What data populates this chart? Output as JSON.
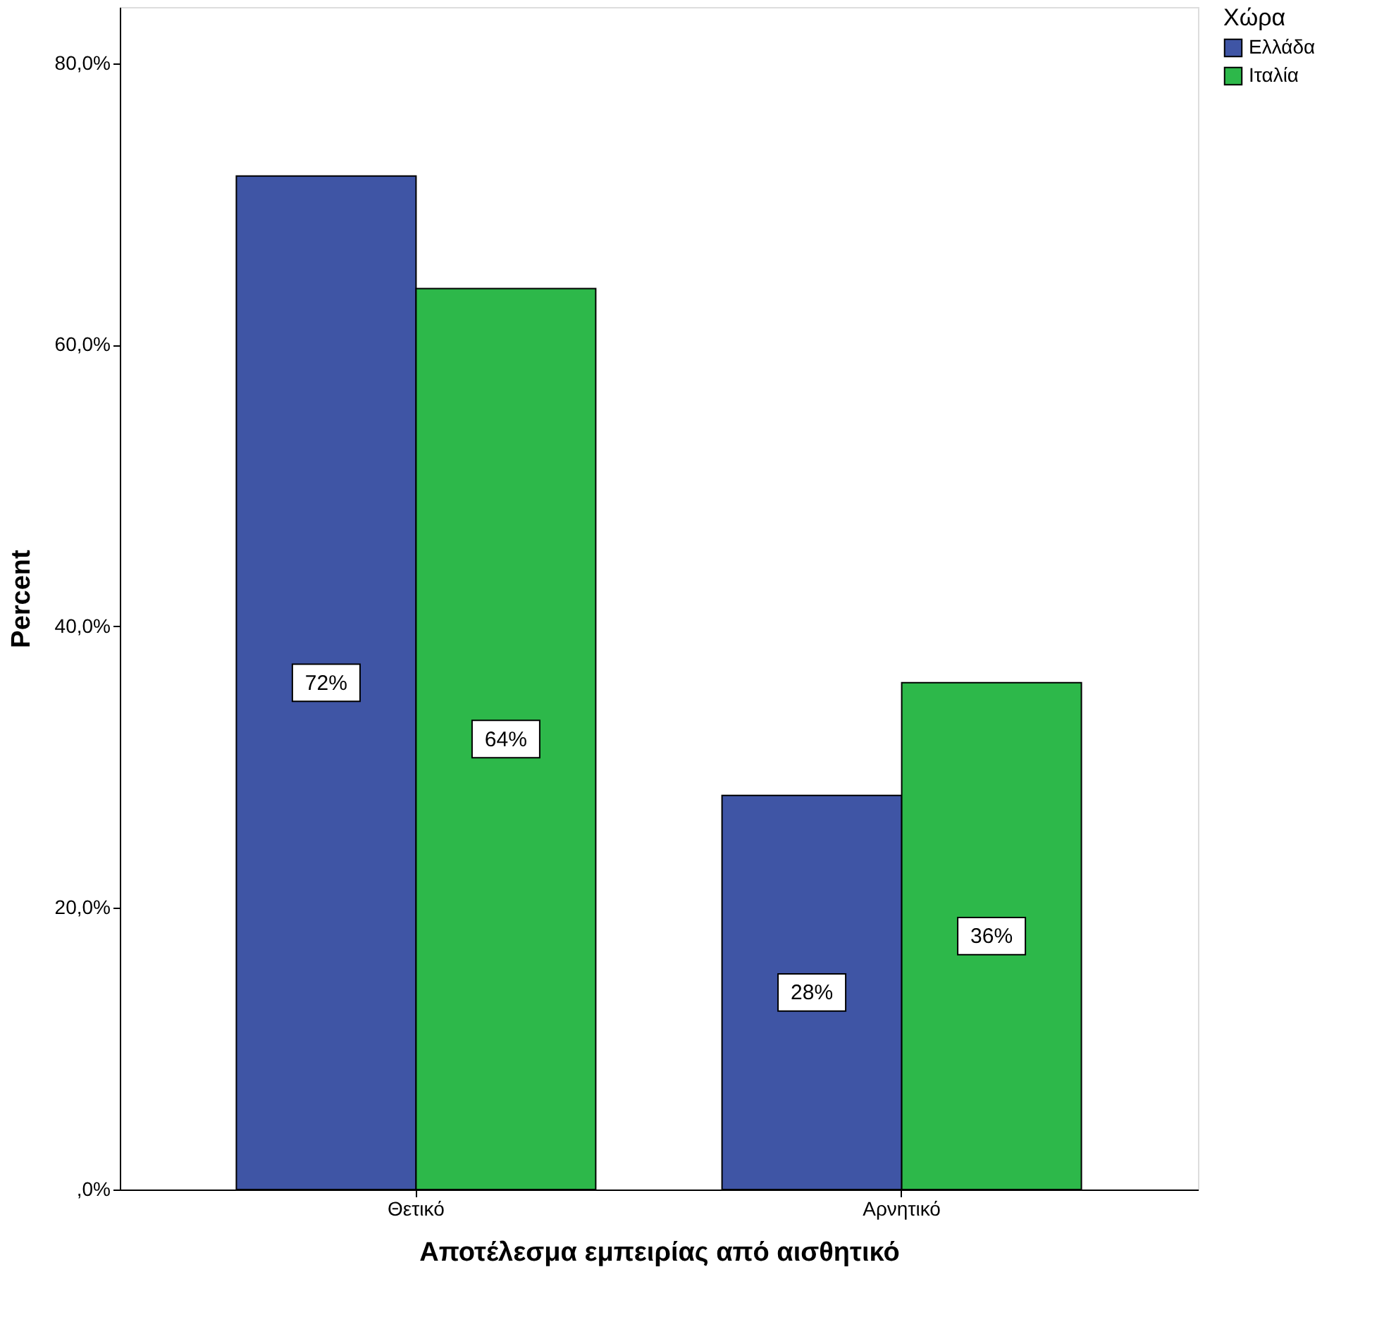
{
  "chart_data": {
    "type": "bar",
    "xlabel": "Αποτέλεσμα εμπειρίας από αισθητικό",
    "ylabel": "Percent",
    "legend_title": "Χώρα",
    "categories": [
      "Θετικό",
      "Αρνητικό"
    ],
    "series": [
      {
        "name": "Ελλάδα",
        "color": "#3f55a5",
        "values": [
          72,
          28
        ],
        "value_labels": [
          "72%",
          "28%"
        ]
      },
      {
        "name": "Ιταλία",
        "color": "#2db84a",
        "values": [
          64,
          36
        ],
        "value_labels": [
          "64%",
          "36%"
        ]
      }
    ],
    "ylim": [
      0,
      84
    ],
    "yticks": [
      {
        "value": 0,
        "label": ",0%"
      },
      {
        "value": 20,
        "label": "20,0%"
      },
      {
        "value": 40,
        "label": "40,0%"
      },
      {
        "value": 60,
        "label": "60,0%"
      },
      {
        "value": 80,
        "label": "80,0%"
      }
    ],
    "grid": false,
    "legend": "top right"
  }
}
